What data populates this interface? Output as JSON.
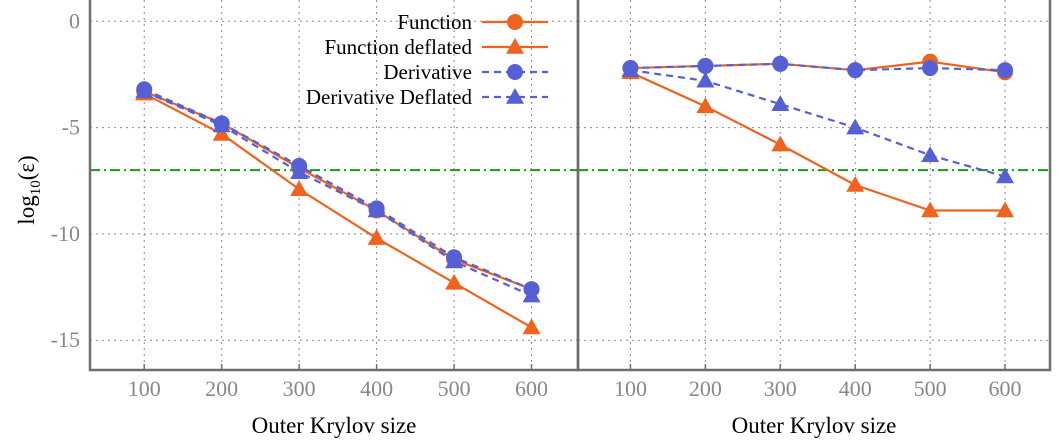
{
  "chart_data": [
    {
      "type": "line",
      "panel": "left",
      "xlabel": "Outer Krylov size",
      "ylabel": "log10(ε)",
      "x": [
        100,
        200,
        300,
        400,
        500,
        600
      ],
      "xlim": [
        30,
        660
      ],
      "ylim": [
        -16.4,
        1
      ],
      "x_ticks": [
        "100",
        "200",
        "300",
        "400",
        "500",
        "600"
      ],
      "y_ticks": [
        "0",
        "-5",
        "-10",
        "-15"
      ],
      "y_tick_values": [
        0,
        -5,
        -10,
        -15
      ],
      "grid": true,
      "legend_position": "top-right",
      "threshold": {
        "y": -7,
        "color": "#1a9a1a",
        "style": "dash-dot"
      },
      "series": [
        {
          "name": "Function",
          "values": [
            -3.3,
            -4.8,
            -6.9,
            -8.9,
            -11.2,
            -12.6
          ],
          "color": "#f0631e",
          "dash": false,
          "marker": "circle"
        },
        {
          "name": "Function deflated",
          "values": [
            -3.4,
            -5.3,
            -7.9,
            -10.2,
            -12.3,
            -14.4
          ],
          "color": "#f0631e",
          "dash": true,
          "marker": "triangle",
          "dash_override": false
        },
        {
          "name": "Derivative",
          "values": [
            -3.2,
            -4.8,
            -6.8,
            -8.8,
            -11.1,
            -12.6
          ],
          "color": "#5560d4",
          "dash": true,
          "marker": "circle"
        },
        {
          "name": "Derivative Deflated",
          "values": [
            -3.3,
            -4.9,
            -7.1,
            -8.9,
            -11.3,
            -12.9
          ],
          "color": "#5560d4",
          "dash": true,
          "marker": "triangle"
        }
      ]
    },
    {
      "type": "line",
      "panel": "right",
      "xlabel": "Outer Krylov size",
      "x": [
        100,
        200,
        300,
        400,
        500,
        600
      ],
      "xlim": [
        30,
        660
      ],
      "ylim": [
        -16.4,
        1
      ],
      "x_ticks": [
        "100",
        "200",
        "300",
        "400",
        "500",
        "600"
      ],
      "grid": true,
      "threshold": {
        "y": -7,
        "color": "#1a9a1a",
        "style": "dash-dot"
      },
      "series": [
        {
          "name": "Function",
          "values": [
            -2.2,
            -2.1,
            -2.0,
            -2.3,
            -1.9,
            -2.4
          ],
          "color": "#f0631e",
          "dash": false,
          "marker": "circle"
        },
        {
          "name": "Function deflated",
          "values": [
            -2.4,
            -4.0,
            -5.8,
            -7.7,
            -8.9,
            -8.9
          ],
          "color": "#f0631e",
          "dash": false,
          "marker": "triangle"
        },
        {
          "name": "Derivative",
          "values": [
            -2.2,
            -2.1,
            -2.0,
            -2.3,
            -2.2,
            -2.3
          ],
          "color": "#5560d4",
          "dash": true,
          "marker": "circle"
        },
        {
          "name": "Derivative Deflated",
          "values": [
            -2.3,
            -2.8,
            -3.9,
            -5.0,
            -6.3,
            -7.3
          ],
          "color": "#5560d4",
          "dash": true,
          "marker": "triangle"
        }
      ]
    }
  ]
}
